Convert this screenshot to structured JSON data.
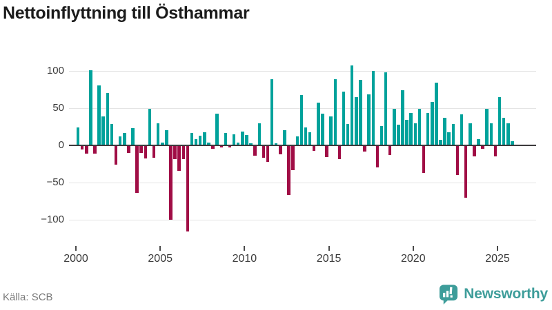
{
  "header": {
    "title": "Nettoinflyttning till Östhammar"
  },
  "footer": {
    "source": "Källa: SCB",
    "brand_name": "Newsworthy"
  },
  "colors": {
    "positive_bar": "#00a29b",
    "negative_bar": "#a00d45",
    "zero_axis": "#3c3a3c",
    "gridline": "#e4e4e4",
    "brand_teal": "#3e9d9a",
    "title_text": "#1b1b1b",
    "tick_text": "#3a3a3a",
    "source_text": "#7a7a7a"
  },
  "chart_data": {
    "type": "bar",
    "title": "Nettoinflyttning till Östhammar",
    "period": "quarterly",
    "x_tick_years": [
      2000,
      2005,
      2010,
      2015,
      2020,
      2025
    ],
    "y_ticks": [
      -100,
      -50,
      0,
      50,
      100
    ],
    "y_tick_labels": [
      "−100",
      "−50",
      "0",
      "50",
      "100"
    ],
    "ylim": [
      -120,
      115
    ],
    "grid": true,
    "legend": "none",
    "bars": [
      {
        "year": 2000,
        "quarters": [
          24,
          -5,
          -10,
          101
        ]
      },
      {
        "year": 2001,
        "quarters": [
          -10,
          81,
          39,
          70
        ]
      },
      {
        "year": 2002,
        "quarters": [
          29,
          -25,
          12,
          17
        ]
      },
      {
        "year": 2003,
        "quarters": [
          -9,
          23,
          -63,
          -9
        ]
      },
      {
        "year": 2004,
        "quarters": [
          -17,
          49,
          -16,
          30
        ]
      },
      {
        "year": 2005,
        "quarters": [
          4,
          20,
          -99,
          -18
        ]
      },
      {
        "year": 2006,
        "quarters": [
          -33,
          -18,
          -115,
          17
        ]
      },
      {
        "year": 2007,
        "quarters": [
          8,
          13,
          18,
          4
        ]
      },
      {
        "year": 2008,
        "quarters": [
          -4,
          43,
          -2,
          17
        ]
      },
      {
        "year": 2009,
        "quarters": [
          -2,
          15,
          4,
          19
        ]
      },
      {
        "year": 2010,
        "quarters": [
          14,
          3,
          -13,
          30
        ]
      },
      {
        "year": 2011,
        "quarters": [
          -16,
          -21,
          89,
          3
        ]
      },
      {
        "year": 2012,
        "quarters": [
          -11,
          20,
          -66,
          -32
        ]
      },
      {
        "year": 2013,
        "quarters": [
          12,
          68,
          24,
          18
        ]
      },
      {
        "year": 2014,
        "quarters": [
          -6,
          57,
          43,
          -15
        ]
      },
      {
        "year": 2015,
        "quarters": [
          39,
          89,
          -18,
          72
        ]
      },
      {
        "year": 2016,
        "quarters": [
          29,
          107,
          65,
          88
        ]
      },
      {
        "year": 2017,
        "quarters": [
          -7,
          69,
          100,
          -29
        ]
      },
      {
        "year": 2018,
        "quarters": [
          26,
          98,
          -12,
          49
        ]
      },
      {
        "year": 2019,
        "quarters": [
          28,
          74,
          34,
          44
        ]
      },
      {
        "year": 2020,
        "quarters": [
          30,
          49,
          -36,
          44
        ]
      },
      {
        "year": 2021,
        "quarters": [
          58,
          84,
          7,
          37
        ]
      },
      {
        "year": 2022,
        "quarters": [
          18,
          29,
          -39,
          42
        ]
      },
      {
        "year": 2023,
        "quarters": [
          -69,
          30,
          -14,
          8
        ]
      },
      {
        "year": 2024,
        "quarters": [
          -4,
          49,
          30,
          -14
        ]
      },
      {
        "year": 2025,
        "quarters": [
          65,
          37,
          30,
          6
        ]
      }
    ]
  }
}
